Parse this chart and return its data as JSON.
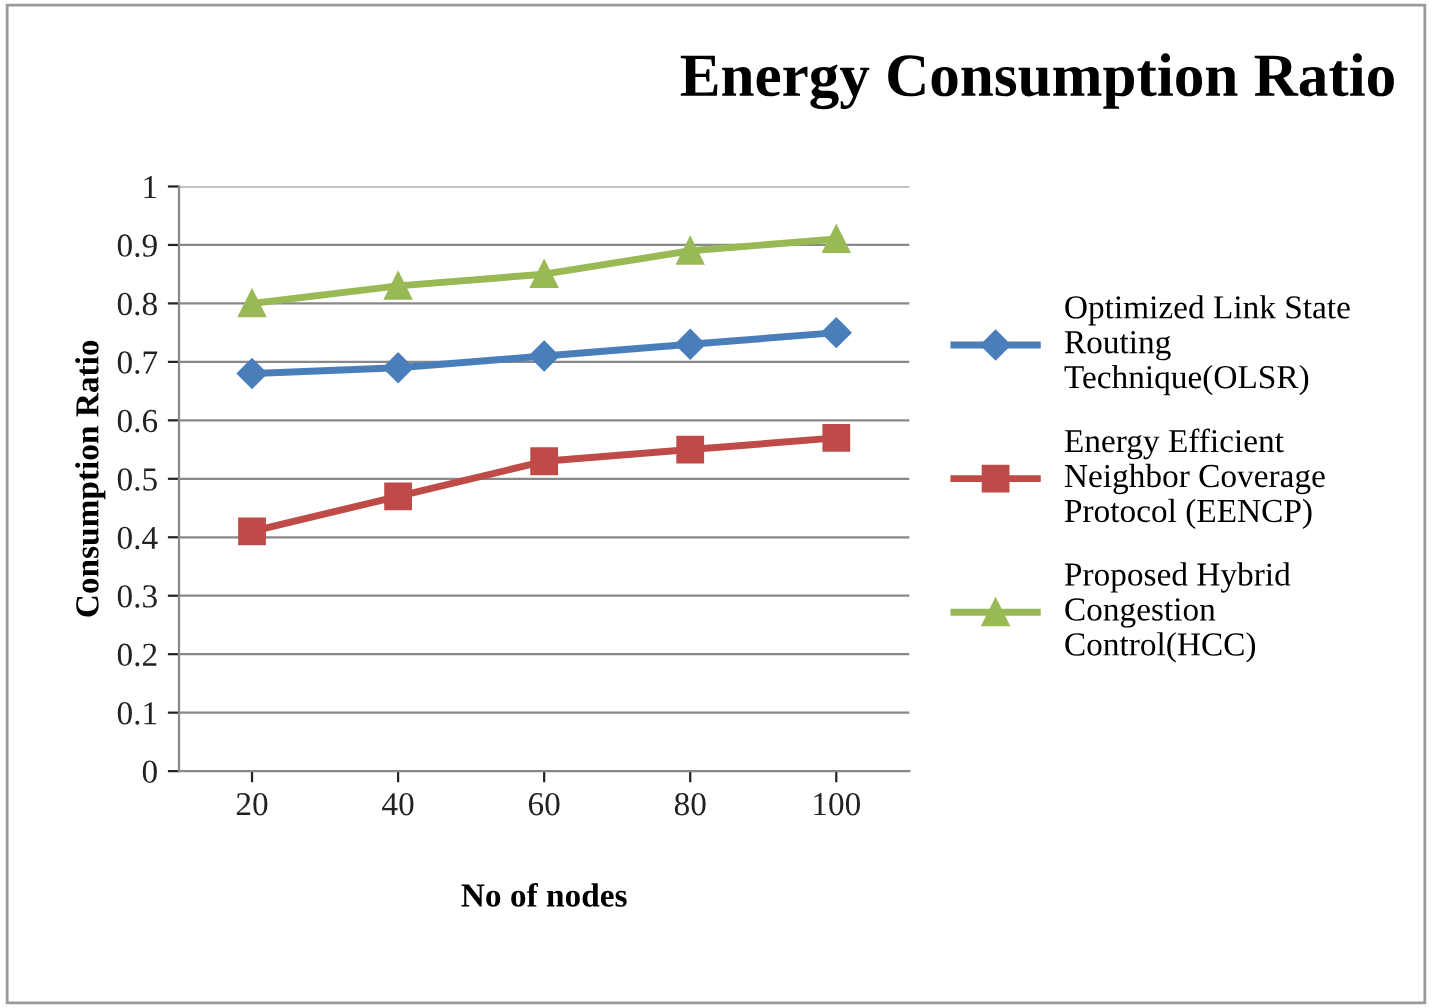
{
  "chart_data": {
    "type": "line",
    "title": "Energy Consumption Ratio",
    "xlabel": "No of nodes",
    "ylabel": "Consumption Ratio",
    "categories": [
      "20",
      "40",
      "60",
      "80",
      "100"
    ],
    "series": [
      {
        "name": "Optimized Link State\nRouting\nTechnique(OLSR)",
        "color": "#4a7ebb",
        "marker": "diamond",
        "values": [
          0.68,
          0.69,
          0.71,
          0.73,
          0.75
        ]
      },
      {
        "name": "Energy Efficient\nNeighbor Coverage\nProtocol (EENCP)",
        "color": "#be4b48",
        "marker": "square",
        "values": [
          0.41,
          0.47,
          0.53,
          0.55,
          0.57
        ]
      },
      {
        "name": "Proposed Hybrid\nCongestion\nControl(HCC)",
        "color": "#98b954",
        "marker": "triangle",
        "values": [
          0.8,
          0.83,
          0.85,
          0.89,
          0.91
        ]
      }
    ],
    "ylim": [
      0,
      1
    ],
    "yticks": [
      0,
      0.1,
      0.2,
      0.3,
      0.4,
      0.5,
      0.6,
      0.7,
      0.8,
      0.9,
      1
    ],
    "grid": "y",
    "legend": "right",
    "line_style": "solid"
  }
}
